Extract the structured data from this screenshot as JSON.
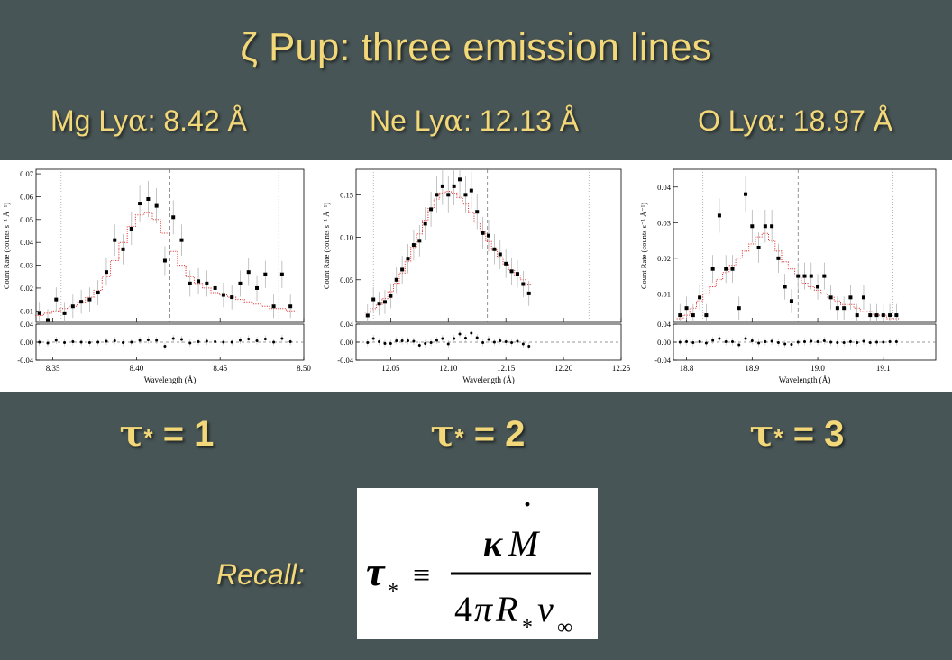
{
  "title": "ζ Pup: three emission lines",
  "line_labels": [
    {
      "prefix": "Mg Ly",
      "greek": "α",
      "suffix": ": 8.42 Å"
    },
    {
      "prefix": "Ne Ly",
      "greek": "α",
      "suffix": ": 12.13 Å"
    },
    {
      "prefix": "O Ly",
      "greek": "α",
      "suffix": ": 18.97 Å"
    }
  ],
  "tau_labels": [
    {
      "sym": "τ",
      "star": "*",
      "eq": " = 1"
    },
    {
      "sym": "τ",
      "star": "*",
      "eq": " = 2"
    },
    {
      "sym": "τ",
      "star": "*",
      "eq": " = 3"
    }
  ],
  "recall": "Recall:",
  "formula": {
    "lhs": "τ",
    "lhs_sub": "*",
    "equiv": "≡",
    "kappa": "κ",
    "M": "M",
    "dot": "·",
    "den_4": "4",
    "den_pi": "π",
    "den_R": "R",
    "den_sub": "*",
    "den_v": "v",
    "den_inf": "∞"
  },
  "chart_data": [
    {
      "type": "scatter",
      "xlabel": "Wavelength (Å)",
      "ylabel": "Count Rate (counts s⁻¹ Å⁻¹)",
      "xlim": [
        8.34,
        8.5
      ],
      "ylim": [
        0.005,
        0.072
      ],
      "xticks": [
        8.35,
        8.4,
        8.45,
        8.5
      ],
      "xtick_labels": [
        "8.35",
        "8.40",
        "8.45",
        "8.50"
      ],
      "yticks": [
        0.01,
        0.02,
        0.03,
        0.04,
        0.05,
        0.06,
        0.07
      ],
      "ytick_labels": [
        "0.01",
        "0.02",
        "0.03",
        "0.04",
        "0.05",
        "0.06",
        "0.07"
      ],
      "resid_ylim": [
        -0.04,
        0.04
      ],
      "resid_yticks": [
        0.04,
        0.0,
        -0.04
      ],
      "resid_ytick_labels": [
        "0.04",
        "0.00",
        "-0.04"
      ],
      "vlines_dotted": [
        8.355,
        8.485
      ],
      "vlines_dashed": [
        8.42
      ],
      "data_x": [
        8.342,
        8.347,
        8.352,
        8.357,
        8.362,
        8.367,
        8.372,
        8.377,
        8.382,
        8.387,
        8.392,
        8.397,
        8.402,
        8.407,
        8.412,
        8.417,
        8.422,
        8.427,
        8.432,
        8.437,
        8.442,
        8.447,
        8.452,
        8.457,
        8.462,
        8.467,
        8.472,
        8.477,
        8.482,
        8.487,
        8.492
      ],
      "data_y": [
        0.009,
        0.006,
        0.015,
        0.009,
        0.012,
        0.014,
        0.015,
        0.018,
        0.027,
        0.041,
        0.037,
        0.046,
        0.057,
        0.059,
        0.056,
        0.032,
        0.051,
        0.041,
        0.022,
        0.023,
        0.022,
        0.02,
        0.017,
        0.016,
        0.022,
        0.027,
        0.02,
        0.026,
        0.012,
        0.026,
        0.012
      ],
      "model_y": [
        0.008,
        0.009,
        0.01,
        0.011,
        0.012,
        0.014,
        0.016,
        0.019,
        0.025,
        0.032,
        0.04,
        0.047,
        0.052,
        0.053,
        0.05,
        0.044,
        0.036,
        0.03,
        0.025,
        0.022,
        0.02,
        0.018,
        0.017,
        0.016,
        0.015,
        0.014,
        0.013,
        0.012,
        0.011,
        0.011,
        0.01
      ],
      "resid_y": [
        0.0,
        -0.002,
        0.004,
        -0.001,
        0.001,
        0.0,
        -0.001,
        0.0,
        0.002,
        0.003,
        -0.001,
        0.0,
        0.004,
        0.005,
        0.004,
        -0.009,
        0.008,
        0.006,
        -0.002,
        0.001,
        0.002,
        0.001,
        0.0,
        0.0,
        0.004,
        0.007,
        0.003,
        0.007,
        0.0,
        0.008,
        0.001
      ]
    },
    {
      "type": "scatter",
      "xlabel": "Wavelength (Å)",
      "ylabel": "Count Rate (counts s⁻¹ Å⁻¹)",
      "xlim": [
        12.02,
        12.25
      ],
      "ylim": [
        0.0,
        0.18
      ],
      "xticks": [
        12.05,
        12.1,
        12.15,
        12.2,
        12.25
      ],
      "xtick_labels": [
        "12.05",
        "12.10",
        "12.15",
        "12.20",
        "12.25"
      ],
      "yticks": [
        0.05,
        0.1,
        0.15
      ],
      "ytick_labels": [
        "0.05",
        "0.10",
        "0.15"
      ],
      "resid_ylim": [
        -0.04,
        0.04
      ],
      "resid_yticks": [
        0.04,
        0.0,
        -0.04
      ],
      "resid_ytick_labels": [
        "0.04",
        "0.00",
        "-0.04"
      ],
      "vlines_dotted": [
        12.035,
        12.222
      ],
      "vlines_dashed": [
        12.134
      ],
      "data_x": [
        12.03,
        12.035,
        12.04,
        12.045,
        12.05,
        12.055,
        12.06,
        12.065,
        12.07,
        12.075,
        12.08,
        12.085,
        12.09,
        12.095,
        12.1,
        12.105,
        12.11,
        12.115,
        12.12,
        12.125,
        12.13,
        12.135,
        12.14,
        12.145,
        12.15,
        12.155,
        12.16,
        12.165,
        12.17
      ],
      "data_y": [
        0.008,
        0.027,
        0.022,
        0.024,
        0.031,
        0.05,
        0.062,
        0.075,
        0.091,
        0.096,
        0.116,
        0.133,
        0.15,
        0.16,
        0.15,
        0.16,
        0.168,
        0.15,
        0.155,
        0.13,
        0.105,
        0.102,
        0.086,
        0.08,
        0.069,
        0.06,
        0.057,
        0.045,
        0.034
      ],
      "model_y": [
        0.012,
        0.016,
        0.021,
        0.028,
        0.036,
        0.046,
        0.058,
        0.072,
        0.088,
        0.104,
        0.12,
        0.134,
        0.145,
        0.152,
        0.154,
        0.152,
        0.147,
        0.139,
        0.129,
        0.118,
        0.106,
        0.095,
        0.085,
        0.076,
        0.068,
        0.061,
        0.055,
        0.05,
        0.045
      ],
      "resid_y": [
        -0.001,
        0.008,
        0.001,
        -0.003,
        -0.003,
        0.003,
        0.003,
        0.003,
        0.002,
        -0.007,
        -0.003,
        -0.001,
        0.004,
        0.008,
        -0.004,
        0.008,
        0.018,
        0.009,
        0.02,
        0.01,
        -0.001,
        0.006,
        0.0,
        0.003,
        0.001,
        -0.001,
        0.002,
        -0.004,
        -0.009
      ]
    },
    {
      "type": "scatter",
      "xlabel": "Wavelength (Å)",
      "ylabel": "Count Rate (counts s⁻¹ Å⁻¹)",
      "xlim": [
        18.78,
        19.18
      ],
      "ylim": [
        0.002,
        0.045
      ],
      "xticks": [
        18.8,
        18.9,
        19.0,
        19.1
      ],
      "xtick_labels": [
        "18.8",
        "18.9",
        "19.0",
        "19.1"
      ],
      "yticks": [
        0.01,
        0.02,
        0.03,
        0.04
      ],
      "ytick_labels": [
        "0.01",
        "0.02",
        "0.03",
        "0.04"
      ],
      "resid_ylim": [
        -0.04,
        0.04
      ],
      "resid_yticks": [
        0.04,
        0.0,
        -0.04
      ],
      "resid_ytick_labels": [
        "0.04",
        "0.00",
        "-0.04"
      ],
      "vlines_dotted": [
        18.825,
        19.115
      ],
      "vlines_dashed": [
        18.97
      ],
      "data_x": [
        18.79,
        18.8,
        18.81,
        18.82,
        18.83,
        18.84,
        18.85,
        18.86,
        18.87,
        18.88,
        18.89,
        18.9,
        18.91,
        18.92,
        18.93,
        18.94,
        18.95,
        18.96,
        18.97,
        18.98,
        18.99,
        19.0,
        19.01,
        19.02,
        19.03,
        19.04,
        19.05,
        19.06,
        19.07,
        19.08,
        19.09,
        19.1,
        19.11,
        19.12
      ],
      "data_y": [
        0.004,
        0.006,
        0.004,
        0.009,
        0.004,
        0.017,
        0.032,
        0.017,
        0.017,
        0.006,
        0.038,
        0.029,
        0.023,
        0.029,
        0.029,
        0.02,
        0.012,
        0.008,
        0.015,
        0.015,
        0.015,
        0.012,
        0.015,
        0.009,
        0.006,
        0.006,
        0.009,
        0.004,
        0.009,
        0.004,
        0.004,
        0.004,
        0.004,
        0.004
      ],
      "model_y": [
        0.003,
        0.004,
        0.006,
        0.008,
        0.01,
        0.012,
        0.014,
        0.016,
        0.018,
        0.02,
        0.022,
        0.024,
        0.026,
        0.027,
        0.025,
        0.022,
        0.019,
        0.017,
        0.015,
        0.013,
        0.012,
        0.011,
        0.01,
        0.009,
        0.008,
        0.007,
        0.007,
        0.006,
        0.005,
        0.005,
        0.004,
        0.004,
        0.003,
        0.003
      ],
      "resid_y": [
        0.0,
        0.001,
        -0.001,
        0.001,
        -0.002,
        0.004,
        0.008,
        0.001,
        0.001,
        -0.006,
        0.008,
        0.003,
        -0.002,
        0.001,
        0.002,
        -0.001,
        -0.004,
        -0.005,
        0.0,
        0.001,
        0.002,
        0.001,
        0.003,
        0.0,
        -0.001,
        -0.001,
        0.001,
        -0.001,
        0.002,
        -0.001,
        0.0,
        0.0,
        0.001,
        0.001
      ]
    }
  ]
}
